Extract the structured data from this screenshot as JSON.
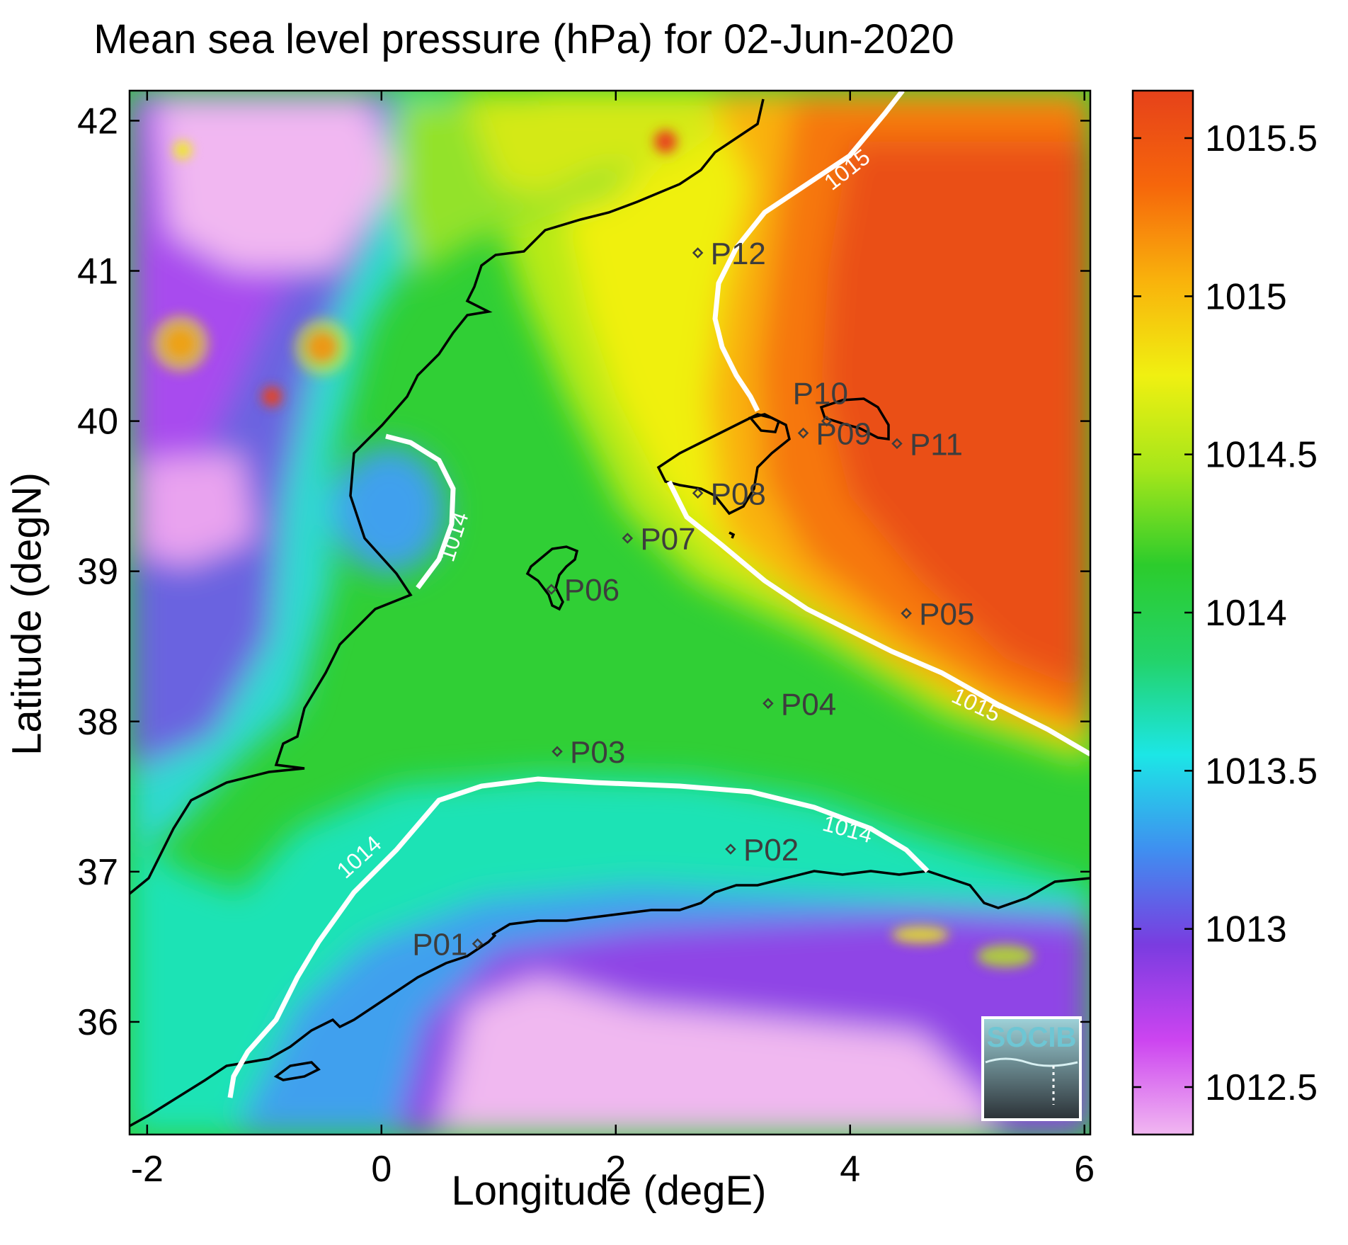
{
  "map": {
    "title": "Mean sea level pressure (hPa) for 02-Jun-2020",
    "xlabel": "Longitude (degE)",
    "ylabel": "Latitude (degN)",
    "x_range": [
      -2.15,
      6.05
    ],
    "y_range": [
      35.25,
      42.2
    ],
    "x_ticks": [
      -2,
      0,
      2,
      4,
      6
    ],
    "y_ticks": [
      36,
      37,
      38,
      39,
      40,
      41,
      42
    ],
    "colorbar": {
      "range": [
        1012.35,
        1015.65
      ],
      "ticks": [
        "1012.5",
        "1013",
        "1013.5",
        "1014",
        "1014.5",
        "1015",
        "1015.5"
      ],
      "colors": [
        "#f1b7f1",
        "#cc44f0",
        "#7a3ce0",
        "#3f8ff0",
        "#1ce6e6",
        "#23d36a",
        "#2ccc2c",
        "#a6e61a",
        "#f0f011",
        "#f9b20c",
        "#f6660b",
        "#e6421a"
      ]
    },
    "stations": [
      {
        "label": "P01",
        "lon": 0.82,
        "lat": 36.52
      },
      {
        "label": "P02",
        "lon": 2.98,
        "lat": 37.15
      },
      {
        "label": "P03",
        "lon": 1.5,
        "lat": 37.8
      },
      {
        "label": "P04",
        "lon": 3.3,
        "lat": 38.12
      },
      {
        "label": "P05",
        "lon": 4.48,
        "lat": 38.72
      },
      {
        "label": "P06",
        "lon": 1.45,
        "lat": 38.88
      },
      {
        "label": "P07",
        "lon": 2.1,
        "lat": 39.22
      },
      {
        "label": "P08",
        "lon": 2.7,
        "lat": 39.52
      },
      {
        "label": "P09",
        "lon": 3.6,
        "lat": 39.92
      },
      {
        "label": "P10",
        "lon": 3.8,
        "lat": 40.0
      },
      {
        "label": "P11",
        "lon": 4.4,
        "lat": 39.85
      },
      {
        "label": "P12",
        "lon": 2.7,
        "lat": 41.12
      }
    ],
    "contours": [
      {
        "level": "1015",
        "labels": [
          "1015",
          "1015"
        ]
      },
      {
        "level": "1014",
        "labels": [
          "1014",
          "1014",
          "1014"
        ]
      }
    ],
    "logo": "SOCIB"
  }
}
